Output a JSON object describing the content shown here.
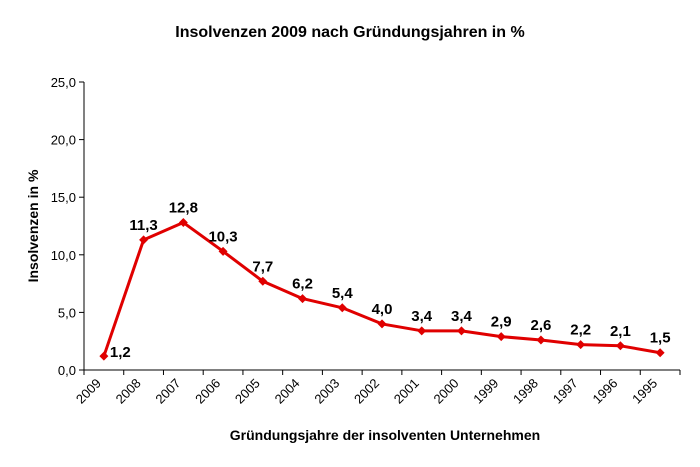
{
  "chart_data": {
    "type": "line",
    "title": "Insolvenzen 2009 nach Gründungsjahren in %",
    "xlabel": "Gründungsjahre der insolventen Unternehmen",
    "ylabel": "Insolvenzen in %",
    "categories": [
      "2009",
      "2008",
      "2007",
      "2006",
      "2005",
      "2004",
      "2003",
      "2002",
      "2001",
      "2000",
      "1999",
      "1998",
      "1997",
      "1996",
      "1995"
    ],
    "series": [
      {
        "values": [
          1.2,
          11.3,
          12.8,
          10.3,
          7.7,
          6.2,
          5.4,
          4.0,
          3.4,
          3.4,
          2.9,
          2.6,
          2.2,
          2.1,
          1.5
        ],
        "labels": [
          "1,2",
          "11,3",
          "12,8",
          "10,3",
          "7,7",
          "6,2",
          "5,4",
          "4,0",
          "3,4",
          "3,4",
          "2,9",
          "2,6",
          "2,2",
          "2,1",
          "1,5"
        ],
        "color": "#e00000"
      }
    ],
    "ylim": [
      0,
      25
    ],
    "yticks": [
      {
        "value": 0,
        "label": "0,0"
      },
      {
        "value": 5,
        "label": "5,0"
      },
      {
        "value": 10,
        "label": "10,0"
      },
      {
        "value": 15,
        "label": "15,0"
      },
      {
        "value": 20,
        "label": "20,0"
      },
      {
        "value": 25,
        "label": "25,0"
      }
    ],
    "grid": false,
    "legend": "none"
  }
}
